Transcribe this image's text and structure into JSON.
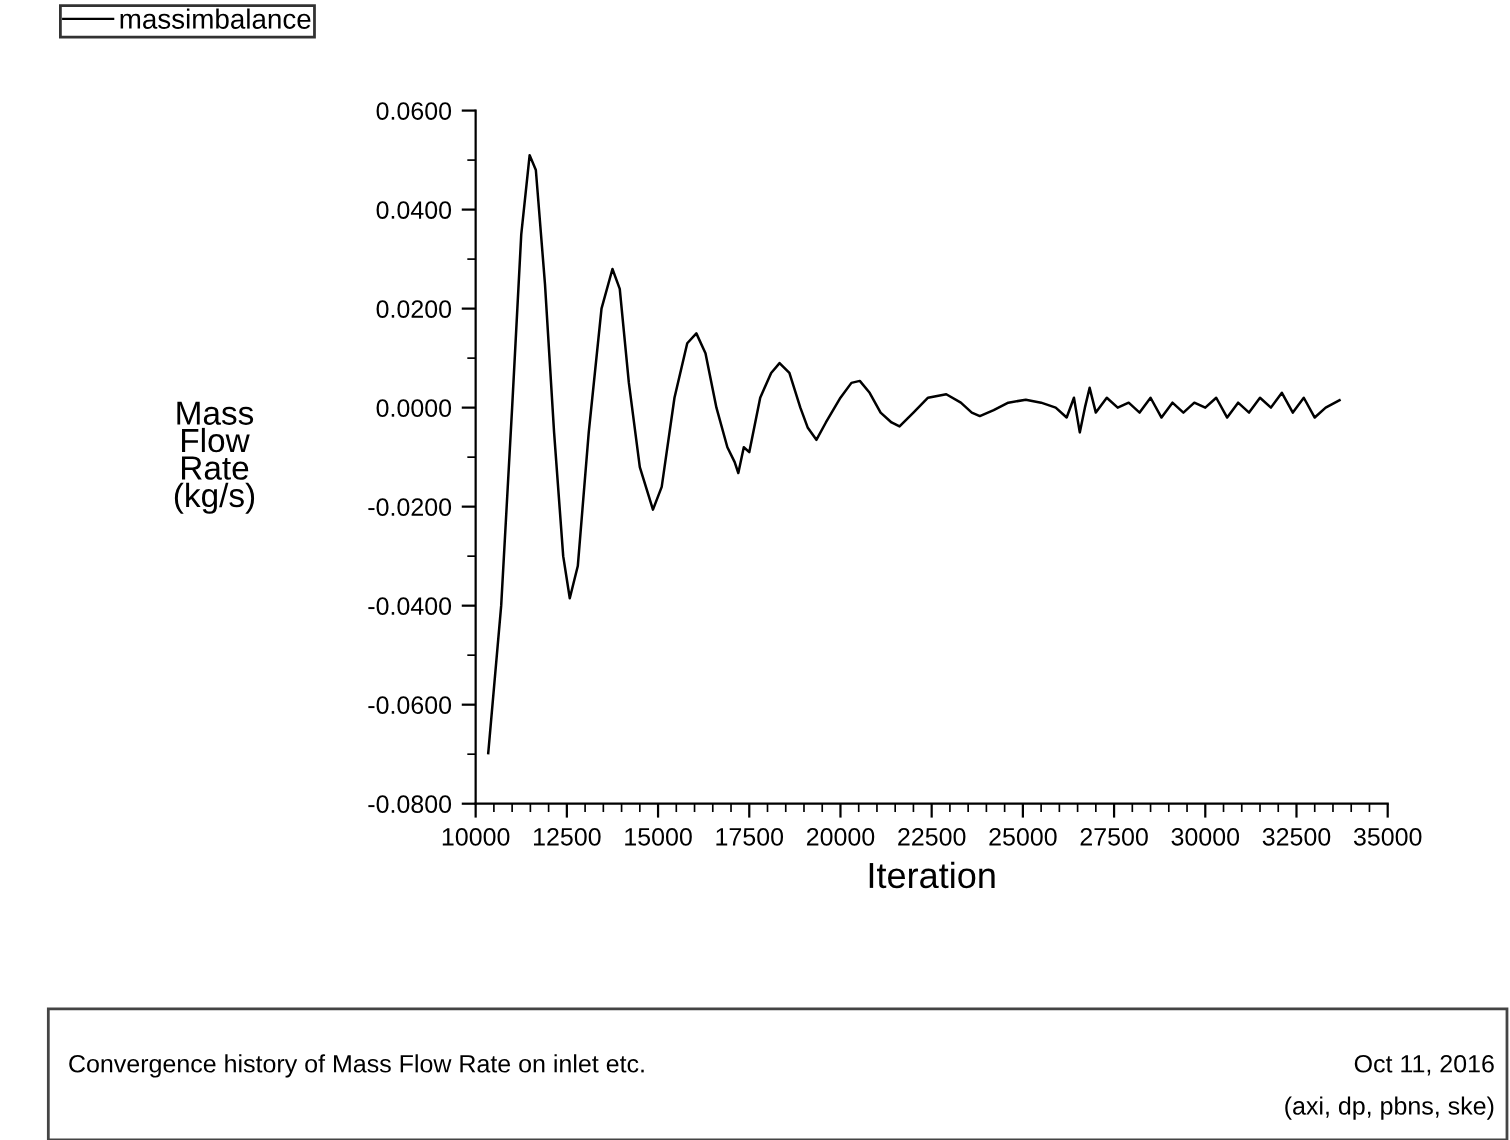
{
  "chart_data": {
    "type": "line",
    "xlabel": "Iteration",
    "ylabel": "Mass\nFlow\nRate\n(kg/s)",
    "x": [
      10345,
      10700,
      11000,
      11250,
      11480,
      11650,
      11900,
      12150,
      12400,
      12580,
      12800,
      13100,
      13450,
      13750,
      13950,
      14200,
      14500,
      14860,
      15100,
      15450,
      15800,
      16050,
      16300,
      16600,
      16900,
      17100,
      17200,
      17350,
      17500,
      17800,
      18100,
      18330,
      18600,
      18900,
      19100,
      19340,
      19600,
      20000,
      20300,
      20530,
      20800,
      21100,
      21400,
      21620,
      22000,
      22400,
      22900,
      23300,
      23600,
      23820,
      24200,
      24600,
      25080,
      25500,
      25900,
      26200,
      26400,
      26560,
      26700,
      26830,
      27000,
      27300,
      27600,
      27900,
      28200,
      28500,
      28800,
      29100,
      29400,
      29700,
      30000,
      30300,
      30600,
      30900,
      31200,
      31500,
      31800,
      32100,
      32400,
      32700,
      33000,
      33300,
      33680
    ],
    "series": [
      {
        "name": "massimbalance",
        "color": "#000000",
        "values": [
          -0.0698,
          -0.04,
          0.0,
          0.035,
          0.051,
          0.048,
          0.025,
          -0.005,
          -0.03,
          -0.0385,
          -0.032,
          -0.005,
          0.02,
          0.028,
          0.024,
          0.005,
          -0.012,
          -0.0206,
          -0.016,
          0.002,
          0.013,
          0.015,
          0.011,
          0.0,
          -0.008,
          -0.011,
          -0.0132,
          -0.008,
          -0.009,
          0.002,
          0.007,
          0.009,
          0.007,
          0.0,
          -0.004,
          -0.0065,
          -0.003,
          0.002,
          0.005,
          0.0054,
          0.003,
          -0.001,
          -0.003,
          -0.0038,
          -0.001,
          0.002,
          0.0027,
          0.001,
          -0.001,
          -0.0017,
          -0.0005,
          0.001,
          0.0016,
          0.001,
          0.0,
          -0.002,
          0.002,
          -0.005,
          0.0,
          0.004,
          -0.001,
          0.002,
          0.0,
          0.001,
          -0.001,
          0.002,
          -0.002,
          0.001,
          -0.001,
          0.001,
          0.0,
          0.002,
          -0.002,
          0.001,
          -0.001,
          0.002,
          0.0,
          0.003,
          -0.001,
          0.002,
          -0.002,
          0.0,
          0.0015
        ]
      }
    ],
    "xlim": [
      10000,
      35000
    ],
    "xticks": [
      10000,
      12500,
      15000,
      17500,
      20000,
      22500,
      25000,
      27500,
      30000,
      32500,
      35000
    ],
    "ylim": [
      -0.08,
      0.06
    ],
    "yticks": [
      {
        "value": -0.08,
        "label": "-0.0800"
      },
      {
        "value": -0.06,
        "label": "-0.0600"
      },
      {
        "value": -0.04,
        "label": "-0.0400"
      },
      {
        "value": -0.02,
        "label": "-0.0200"
      },
      {
        "value": 0,
        "label": "0.0000"
      },
      {
        "value": 0.02,
        "label": "0.0200"
      },
      {
        "value": 0.04,
        "label": "0.0400"
      },
      {
        "value": 0.06,
        "label": "0.0600"
      }
    ],
    "grid": false,
    "legend": "top left",
    "marker": "none",
    "line_style": "solid",
    "annotations": [
      "Convergence history of Mass Flow Rate on inlet etc.",
      "Oct 11, 2016",
      "(axi, dp, pbns, ske)"
    ]
  }
}
